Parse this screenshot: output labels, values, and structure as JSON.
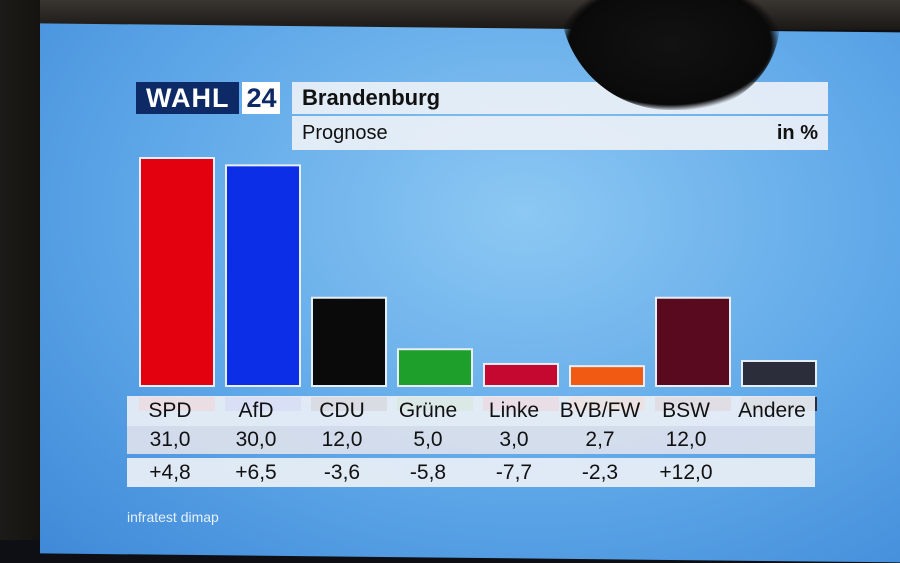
{
  "logo": {
    "word": "WAHL",
    "number": "24"
  },
  "header": {
    "title": "Brandenburg",
    "subtitle": "Prognose",
    "unit": "in %"
  },
  "source": "infratest dimap",
  "colors": {
    "SPD": "#e3000f",
    "AfD": "#0b2ee6",
    "CDU": "#0a0a0a",
    "Grüne": "#1e9e2a",
    "Linke": "#c4082f",
    "BVB/FW": "#f05a12",
    "BSW": "#5a0a1e",
    "Andere": "#2b2d3a"
  },
  "chart_data": {
    "type": "bar",
    "title": "Brandenburg",
    "subtitle": "Prognose",
    "ylabel": "in %",
    "categories": [
      "SPD",
      "AfD",
      "CDU",
      "Grüne",
      "Linke",
      "BVB/FW",
      "BSW",
      "Andere"
    ],
    "values": [
      31.0,
      30.0,
      12.0,
      5.0,
      3.0,
      2.7,
      12.0,
      3.4
    ],
    "value_labels": [
      "31,0",
      "30,0",
      "12,0",
      "5,0",
      "3,0",
      "2,7",
      "12,0",
      ""
    ],
    "change_labels": [
      "+4,8",
      "+6,5",
      "-3,6",
      "-5,8",
      "-7,7",
      "-2,3",
      "+12,0",
      ""
    ],
    "ylim": [
      0,
      31
    ],
    "grid": false,
    "legend": "none"
  }
}
